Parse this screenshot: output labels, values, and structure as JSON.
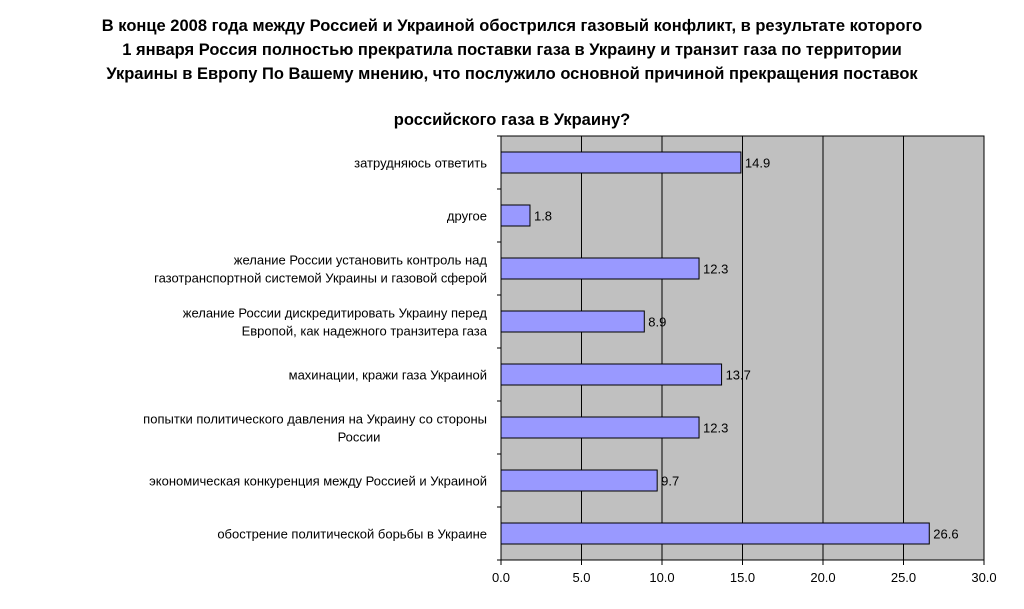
{
  "title_lines": [
    "В конце 2008 года между Россией и Украиной обострился газовый конфликт, в результате которого",
    "1 января Россия полностью прекратила поставки газа в Украину и транзит газа по территории",
    "Украины в Европу  По Вашему мнению, что послужило основной причиной прекращения поставок",
    "российского газа в Украину?"
  ],
  "chart_data": {
    "type": "bar",
    "orientation": "horizontal",
    "title": "В конце 2008 года между Россией и Украиной обострился газовый конфликт, в результате которого 1 января Россия полностью прекратила поставки газа в Украину и транзит газа по территории Украины в Европу  По Вашему мнению, что послужило основной причиной прекращения поставок российского газа в Украину?",
    "categories": [
      [
        "затрудняюсь ответить"
      ],
      [
        "другое"
      ],
      [
        "желание России установить контроль над",
        "газотранспортной системой Украины и газовой сферой"
      ],
      [
        "желание России дискредитировать Украину перед",
        "Европой, как надежного транзитера газа"
      ],
      [
        "махинации, кражи газа Украиной"
      ],
      [
        "попытки политического давления на Украину со стороны",
        "России"
      ],
      [
        "экономическая конкуренция между Россией и Украиной"
      ],
      [
        "обострение политической борьбы в Украине"
      ]
    ],
    "values": [
      14.9,
      1.8,
      12.3,
      8.9,
      13.7,
      12.3,
      9.7,
      26.6
    ],
    "value_labels": [
      "14.9",
      "1.8",
      "12.3",
      "8.9",
      "13.7",
      "12.3",
      "9.7",
      "26.6"
    ],
    "xlim": [
      0,
      30
    ],
    "ticks": [
      "0.0",
      "5.0",
      "10.0",
      "15.0",
      "20.0",
      "25.0",
      "30.0"
    ],
    "tick_values": [
      0,
      5,
      10,
      15,
      20,
      25,
      30
    ],
    "xlabel": "",
    "ylabel": "",
    "grid": true,
    "legend": "none",
    "colors": {
      "bar_fill": "#9999ff",
      "bar_stroke": "#000000",
      "plot_background": "#c0c0c0",
      "gridline": "#000000"
    }
  }
}
